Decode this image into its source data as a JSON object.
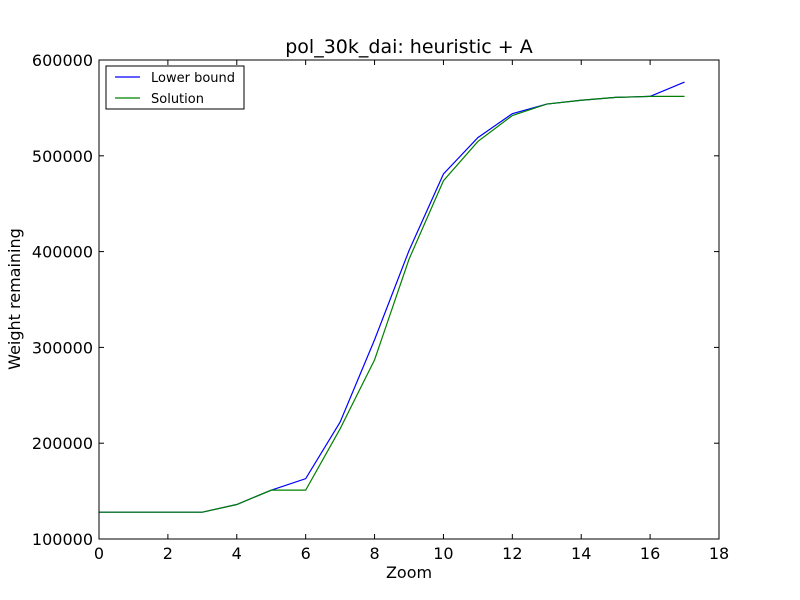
{
  "chart_data": {
    "type": "line",
    "title": "pol_30k_dai: heuristic + A",
    "xlabel": "Zoom",
    "ylabel": "Weight remaining",
    "xlim": [
      0,
      18
    ],
    "ylim": [
      100000,
      600000
    ],
    "xticks": [
      "0",
      "2",
      "4",
      "6",
      "8",
      "10",
      "12",
      "14",
      "16",
      "18"
    ],
    "yticks": [
      "100000",
      "200000",
      "300000",
      "400000",
      "500000",
      "600000"
    ],
    "legend_position": "top-left",
    "grid": false,
    "series": [
      {
        "name": "Lower bound",
        "color": "#0000ff",
        "x": [
          0,
          1,
          2,
          3,
          4,
          5,
          6,
          7,
          8,
          9,
          10,
          11,
          12,
          13,
          14,
          15,
          16,
          17
        ],
        "y": [
          128000,
          128000,
          128000,
          128000,
          136000,
          151000,
          163000,
          222000,
          308000,
          401000,
          481000,
          519000,
          544000,
          554000,
          558000,
          561000,
          562000,
          577000
        ]
      },
      {
        "name": "Solution",
        "color": "#008000",
        "x": [
          0,
          1,
          2,
          3,
          4,
          5,
          6,
          7,
          8,
          9,
          10,
          11,
          12,
          13,
          14,
          15,
          16,
          17
        ],
        "y": [
          128000,
          128000,
          128000,
          128000,
          136000,
          151000,
          151000,
          215000,
          287000,
          392000,
          474000,
          515000,
          542000,
          554000,
          558000,
          561000,
          562000,
          562000
        ]
      }
    ]
  }
}
